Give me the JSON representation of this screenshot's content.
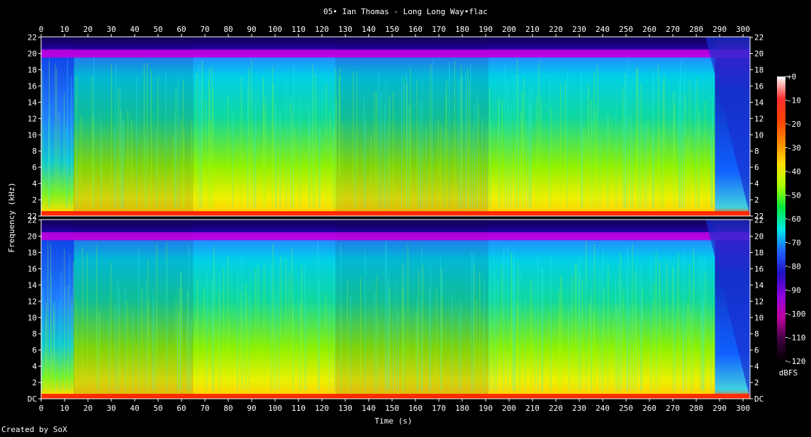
{
  "title": "05• Ian Thomas - Long Long Way•flac",
  "footer": "Created by SoX",
  "chart_data": {
    "type": "heatmap",
    "title": "05• Ian Thomas - Long Long Way•flac",
    "xlabel": "Time (s)",
    "ylabel": "Frequency (kHz)",
    "xlim": [
      0,
      303
    ],
    "ylim": [
      0,
      22.05
    ],
    "x_ticks": [
      0,
      10,
      20,
      30,
      40,
      50,
      60,
      70,
      80,
      90,
      100,
      110,
      120,
      130,
      140,
      150,
      160,
      170,
      180,
      190,
      200,
      210,
      220,
      230,
      240,
      250,
      260,
      270,
      280,
      290,
      300
    ],
    "y_ticks": [
      "DC",
      "2",
      "4",
      "6",
      "8",
      "10",
      "12",
      "14",
      "16",
      "18",
      "20",
      "22"
    ],
    "channels": [
      {
        "name": "",
        "bottom_label": "22"
      },
      {
        "name": "",
        "bottom_label": "DC"
      }
    ],
    "colorbar": {
      "label": "dBFS",
      "ticks": [
        "+0",
        "-10",
        "-20",
        "-30",
        "-40",
        "-50",
        "-60",
        "-70",
        "-80",
        "-90",
        "-100",
        "-110",
        "-120"
      ],
      "colors": [
        "#ffffff",
        "#ff3030",
        "#ff4000",
        "#ff8800",
        "#ffe000",
        "#a8ff00",
        "#00e840",
        "#00e8e8",
        "#2060ff",
        "#2010c0",
        "#9000e0",
        "#c000a0",
        "#400040",
        "#000000"
      ]
    },
    "sections": [
      {
        "start": 0,
        "end": 14,
        "level": "quiet"
      },
      {
        "start": 14,
        "end": 65,
        "level": "medium"
      },
      {
        "start": 65,
        "end": 126,
        "level": "loud"
      },
      {
        "start": 126,
        "end": 191,
        "level": "medium"
      },
      {
        "start": 191,
        "end": 288,
        "level": "loud"
      },
      {
        "start": 288,
        "end": 303,
        "level": "fade"
      }
    ],
    "lowpass_khz": 20
  }
}
